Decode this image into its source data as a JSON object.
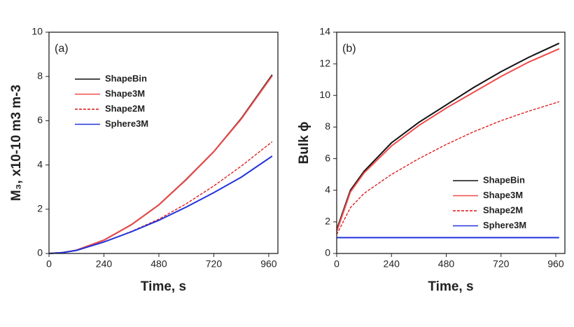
{
  "chart_data": [
    {
      "type": "line",
      "annotation": "(a)",
      "x_label": "Time, s",
      "y_label": "M₃, x10-10 m3 m-3",
      "x": [
        0,
        60,
        120,
        240,
        360,
        480,
        600,
        720,
        840,
        975
      ],
      "xlim": [
        0,
        1000
      ],
      "xticks": [
        0,
        240,
        480,
        720,
        960
      ],
      "ylim": [
        0,
        10
      ],
      "yticks": [
        0,
        2,
        4,
        6,
        8,
        10
      ],
      "legend": "upper-left",
      "series": [
        {
          "name": "ShapeBin",
          "color": "#111111",
          "linestyle": "solid",
          "values": [
            0,
            0.04,
            0.15,
            0.6,
            1.3,
            2.2,
            3.35,
            4.6,
            6.1,
            8.07
          ]
        },
        {
          "name": "Shape3M",
          "color": "#f04a4a",
          "linestyle": "solid",
          "values": [
            0,
            0.04,
            0.15,
            0.6,
            1.3,
            2.2,
            3.34,
            4.6,
            6.08,
            8.03
          ]
        },
        {
          "name": "Shape2M",
          "color": "#e01010",
          "linestyle": "dashed",
          "values": [
            0,
            0.04,
            0.14,
            0.52,
            1.0,
            1.55,
            2.25,
            3.05,
            3.95,
            5.05
          ]
        },
        {
          "name": "Sphere3M",
          "color": "#2233dd",
          "linestyle": "solid",
          "values": [
            0,
            0.04,
            0.14,
            0.52,
            0.98,
            1.5,
            2.1,
            2.75,
            3.45,
            4.4
          ]
        }
      ]
    },
    {
      "type": "line",
      "annotation": "(b)",
      "x_label": "Time, s",
      "y_label": "Bulk ϕ",
      "x": [
        0,
        60,
        120,
        240,
        360,
        480,
        600,
        720,
        840,
        975
      ],
      "xlim": [
        0,
        1000
      ],
      "xticks": [
        0,
        240,
        480,
        720,
        960
      ],
      "ylim": [
        0,
        14
      ],
      "yticks": [
        0,
        2,
        4,
        6,
        8,
        10,
        12,
        14
      ],
      "legend": "lower-right",
      "series": [
        {
          "name": "ShapeBin",
          "color": "#111111",
          "linestyle": "solid",
          "values": [
            1.5,
            4.0,
            5.2,
            7.0,
            8.3,
            9.4,
            10.5,
            11.5,
            12.4,
            13.3
          ]
        },
        {
          "name": "Shape3M",
          "color": "#f04a4a",
          "linestyle": "solid",
          "values": [
            1.4,
            3.9,
            5.1,
            6.8,
            8.1,
            9.2,
            10.2,
            11.2,
            12.1,
            12.95
          ]
        },
        {
          "name": "Shape2M",
          "color": "#e01010",
          "linestyle": "dashed",
          "values": [
            1.2,
            2.9,
            3.8,
            5.0,
            6.0,
            6.9,
            7.7,
            8.4,
            9.0,
            9.6
          ]
        },
        {
          "name": "Sphere3M",
          "color": "#2233dd",
          "linestyle": "solid",
          "values": [
            1,
            1,
            1,
            1,
            1,
            1,
            1,
            1,
            1,
            1
          ]
        }
      ]
    }
  ]
}
